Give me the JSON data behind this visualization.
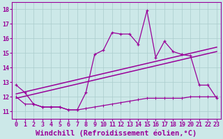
{
  "xlabel": "Windchill (Refroidissement éolien,°C)",
  "background_color": "#cce8e8",
  "line_color": "#990099",
  "xlim": [
    -0.5,
    23.5
  ],
  "ylim": [
    10.5,
    18.5
  ],
  "yticks": [
    11,
    12,
    13,
    14,
    15,
    16,
    17,
    18
  ],
  "xticks": [
    0,
    1,
    2,
    3,
    4,
    5,
    6,
    7,
    8,
    9,
    10,
    11,
    12,
    13,
    14,
    15,
    16,
    17,
    18,
    19,
    20,
    21,
    22,
    23
  ],
  "series1_x": [
    0,
    1,
    2,
    3,
    4,
    5,
    6,
    7,
    8,
    9,
    10,
    11,
    12,
    13,
    14,
    15,
    16,
    17,
    18,
    19,
    20,
    21,
    22,
    23
  ],
  "series1_y": [
    12.8,
    12.3,
    11.5,
    11.3,
    11.3,
    11.3,
    11.1,
    11.1,
    12.3,
    14.9,
    15.2,
    16.4,
    16.3,
    16.3,
    15.6,
    17.9,
    14.7,
    15.8,
    15.1,
    14.9,
    14.8,
    12.8,
    12.8,
    11.9
  ],
  "series2_x": [
    0,
    1,
    2,
    3,
    4,
    5,
    6,
    7,
    8,
    9,
    10,
    11,
    12,
    13,
    14,
    15,
    16,
    17,
    18,
    19,
    20,
    21,
    22,
    23
  ],
  "series2_y": [
    12.0,
    11.5,
    11.5,
    11.3,
    11.3,
    11.3,
    11.1,
    11.1,
    11.2,
    11.3,
    11.4,
    11.5,
    11.6,
    11.7,
    11.8,
    11.9,
    11.9,
    11.9,
    11.9,
    11.9,
    12.0,
    12.0,
    12.0,
    12.0
  ],
  "series3_x": [
    0,
    23
  ],
  "series3_y": [
    11.9,
    15.1
  ],
  "series4_x": [
    0,
    23
  ],
  "series4_y": [
    12.2,
    15.4
  ],
  "gridcolor": "#aacccc",
  "tick_fontsize": 6,
  "xlabel_fontsize": 7.5
}
